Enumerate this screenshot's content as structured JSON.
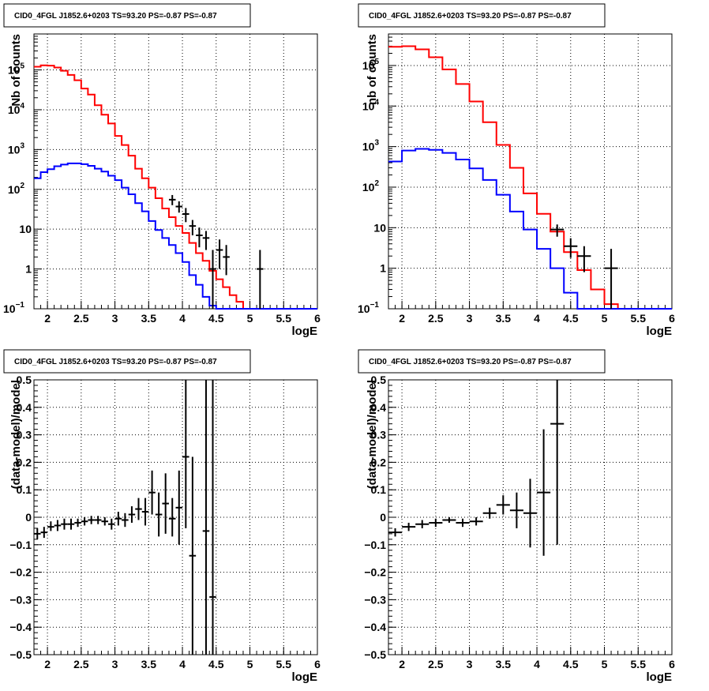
{
  "chart_data": [
    {
      "type": "line",
      "title": "CID0_4FGL J1852.6+0203 TS=93.20 PS=-0.87 PS=-0.87",
      "xlabel": "logE",
      "ylabel": "Nb of counts",
      "xlim": [
        1.8,
        6.0
      ],
      "ylim": [
        0.1,
        800000
      ],
      "y_scale": "log",
      "grid": true,
      "x_ticks": [
        2,
        2.5,
        3,
        3.5,
        4,
        4.5,
        5,
        5.5,
        6
      ],
      "x_tick_labels": [
        "2",
        "2.5",
        "3",
        "3.5",
        "4",
        "4.5",
        "5",
        "5.5",
        "6"
      ],
      "y_ticks": [
        0.1,
        1,
        10,
        100,
        1000,
        10000,
        100000
      ],
      "y_tick_labels": [
        {
          "base": "10",
          "exp": "−1"
        },
        {
          "base": "1",
          "exp": ""
        },
        {
          "base": "10",
          "exp": ""
        },
        {
          "base": "10",
          "exp": "2"
        },
        {
          "base": "10",
          "exp": "3"
        },
        {
          "base": "10",
          "exp": "4"
        },
        {
          "base": "10",
          "exp": "5"
        }
      ],
      "series": [
        {
          "color": "#ff0000",
          "step": true,
          "edges": [
            1.8,
            1.9,
            2.0,
            2.1,
            2.2,
            2.3,
            2.4,
            2.5,
            2.6,
            2.7,
            2.8,
            2.9,
            3.0,
            3.1,
            3.2,
            3.3,
            3.4,
            3.5,
            3.6,
            3.7,
            3.8,
            3.9,
            4.0,
            4.1,
            4.2,
            4.3,
            4.4,
            4.5,
            4.6,
            4.7,
            4.8,
            4.9,
            5.0,
            5.1,
            5.2,
            5.3,
            5.4,
            5.5,
            5.6,
            5.7,
            5.8,
            5.9,
            6.0
          ],
          "values": [
            120000,
            130000,
            128000,
            115000,
            95000,
            75000,
            55000,
            34000,
            24000,
            13000,
            7500,
            4500,
            2200,
            1300,
            700,
            330,
            190,
            110,
            60,
            33,
            20,
            12,
            8,
            4.5,
            2.5,
            1.6,
            0.9,
            0.55,
            0.35,
            0.22,
            0.15,
            0.1,
            0.1,
            0.1,
            0.1,
            0.1,
            0.1,
            0.1,
            0.1,
            0.1,
            0.1,
            0.1
          ]
        },
        {
          "color": "#0000ff",
          "step": true,
          "edges": [
            1.8,
            1.9,
            2.0,
            2.1,
            2.2,
            2.3,
            2.4,
            2.5,
            2.6,
            2.7,
            2.8,
            2.9,
            3.0,
            3.1,
            3.2,
            3.3,
            3.4,
            3.5,
            3.6,
            3.7,
            3.8,
            3.9,
            4.0,
            4.1,
            4.2,
            4.3,
            4.4,
            4.5,
            4.6,
            4.7,
            4.8,
            4.9,
            5.0,
            5.1,
            5.2,
            5.3,
            5.4,
            5.5,
            5.6,
            5.7,
            5.8,
            5.9,
            6.0
          ],
          "values": [
            190,
            270,
            320,
            380,
            420,
            450,
            450,
            430,
            390,
            330,
            280,
            220,
            170,
            110,
            75,
            45,
            28,
            16,
            9.5,
            6,
            4,
            2.5,
            1.5,
            0.7,
            0.4,
            0.2,
            0.12,
            0.1,
            0.1,
            0.1,
            0.1,
            0.1,
            0.1,
            0.1,
            0.1,
            0.1,
            0.1,
            0.1,
            0.1,
            0.1,
            0.1,
            0.1
          ]
        }
      ],
      "points": {
        "x": [
          3.85,
          3.95,
          4.05,
          4.15,
          4.25,
          4.35,
          4.45,
          4.55,
          4.65,
          5.15
        ],
        "xerr": 0.05,
        "y": [
          55,
          37,
          24,
          12,
          7,
          6,
          1,
          3,
          2,
          1
        ],
        "ylow": [
          40,
          26,
          15,
          7,
          3.5,
          3,
          0.1,
          1,
          0.7,
          0.1
        ],
        "yhigh": [
          72,
          50,
          34,
          17,
          11,
          9,
          3,
          5.5,
          4,
          3
        ]
      }
    },
    {
      "type": "line",
      "title": "CID0_4FGL J1852.6+0203 TS=93.20 PS=-0.87 PS=-0.87",
      "xlabel": "logE",
      "ylabel": "nb of counts",
      "xlim": [
        1.8,
        6.0
      ],
      "ylim": [
        0.1,
        600000
      ],
      "y_scale": "log",
      "grid": true,
      "x_ticks": [
        2,
        2.5,
        3,
        3.5,
        4,
        4.5,
        5,
        5.5,
        6
      ],
      "x_tick_labels": [
        "2",
        "2.5",
        "3",
        "3.5",
        "4",
        "4.5",
        "5",
        "5.5",
        "6"
      ],
      "y_ticks": [
        0.1,
        1,
        10,
        100,
        1000,
        10000,
        100000
      ],
      "y_tick_labels": [
        {
          "base": "10",
          "exp": "−1"
        },
        {
          "base": "1",
          "exp": ""
        },
        {
          "base": "10",
          "exp": ""
        },
        {
          "base": "10",
          "exp": "2"
        },
        {
          "base": "10",
          "exp": "3"
        },
        {
          "base": "10",
          "exp": "4"
        },
        {
          "base": "10",
          "exp": "5"
        }
      ],
      "series": [
        {
          "color": "#ff0000",
          "step": true,
          "edges": [
            1.8,
            2.0,
            2.2,
            2.4,
            2.6,
            2.8,
            3.0,
            3.2,
            3.4,
            3.6,
            3.8,
            4.0,
            4.2,
            4.4,
            4.6,
            4.8,
            5.0,
            5.2,
            5.4,
            5.6,
            5.8,
            6.0
          ],
          "values": [
            290000,
            300000,
            250000,
            160000,
            80000,
            35000,
            13000,
            4000,
            1100,
            300,
            70,
            22,
            8,
            2.5,
            0.9,
            0.3,
            0.13,
            0.1,
            0.1,
            0.1,
            0.1
          ]
        },
        {
          "color": "#0000ff",
          "step": true,
          "edges": [
            1.8,
            2.0,
            2.2,
            2.4,
            2.6,
            2.8,
            3.0,
            3.2,
            3.4,
            3.6,
            3.8,
            4.0,
            4.2,
            4.4,
            4.6,
            4.8,
            5.0,
            5.2,
            5.4,
            5.6,
            5.8,
            6.0
          ],
          "values": [
            430,
            800,
            880,
            830,
            700,
            480,
            290,
            150,
            65,
            25,
            9,
            3,
            1,
            0.25,
            0.1,
            0.1,
            0.1,
            0.1,
            0.1,
            0.1,
            0.1
          ]
        }
      ],
      "points": {
        "x": [
          4.3,
          4.5,
          4.7,
          5.1
        ],
        "xerr": 0.1,
        "y": [
          9,
          3.5,
          2,
          1
        ],
        "ylow": [
          6,
          1.8,
          0.8,
          0.1
        ],
        "yhigh": [
          12,
          5.5,
          3.5,
          3
        ]
      }
    },
    {
      "type": "scatter",
      "title": "CID0_4FGL J1852.6+0203 TS=93.20 PS=-0.87 PS=-0.87",
      "xlabel": "logE",
      "ylabel": "(data-model)/model",
      "xlim": [
        1.8,
        6.0
      ],
      "ylim": [
        -0.5,
        0.5
      ],
      "y_scale": "linear",
      "grid": true,
      "x_ticks": [
        2,
        2.5,
        3,
        3.5,
        4,
        4.5,
        5,
        5.5,
        6
      ],
      "x_tick_labels": [
        "2",
        "2.5",
        "3",
        "3.5",
        "4",
        "4.5",
        "5",
        "5.5",
        "6"
      ],
      "y_ticks": [
        -0.5,
        -0.4,
        -0.3,
        -0.2,
        -0.1,
        0,
        0.1,
        0.2,
        0.3,
        0.4,
        0.5
      ],
      "y_tick_labels": [
        {
          "base": "−0.5",
          "exp": ""
        },
        {
          "base": "−0.4",
          "exp": ""
        },
        {
          "base": "−0.3",
          "exp": ""
        },
        {
          "base": "−0.2",
          "exp": ""
        },
        {
          "base": "−0.1",
          "exp": ""
        },
        {
          "base": "0",
          "exp": ""
        },
        {
          "base": "0.1",
          "exp": ""
        },
        {
          "base": "0.2",
          "exp": ""
        },
        {
          "base": "0.3",
          "exp": ""
        },
        {
          "base": "0.4",
          "exp": ""
        },
        {
          "base": "0.5",
          "exp": ""
        }
      ],
      "series": [],
      "points": {
        "x": [
          1.85,
          1.95,
          2.05,
          2.15,
          2.25,
          2.35,
          2.45,
          2.55,
          2.65,
          2.75,
          2.85,
          2.95,
          3.05,
          3.15,
          3.25,
          3.35,
          3.45,
          3.55,
          3.65,
          3.75,
          3.85,
          3.95,
          4.05,
          4.15,
          4.35,
          4.45
        ],
        "xerr": 0.05,
        "y": [
          -0.06,
          -0.055,
          -0.035,
          -0.03,
          -0.025,
          -0.025,
          -0.02,
          -0.015,
          -0.01,
          -0.01,
          -0.015,
          -0.025,
          -0.005,
          -0.01,
          0.01,
          0.03,
          0.02,
          0.09,
          0.01,
          0.05,
          -0.005,
          0.035,
          0.22,
          -0.14,
          -0.05,
          -0.29
        ],
        "ylow": [
          -0.08,
          -0.075,
          -0.05,
          -0.05,
          -0.045,
          -0.045,
          -0.035,
          -0.03,
          -0.025,
          -0.025,
          -0.03,
          -0.045,
          -0.03,
          -0.035,
          -0.02,
          -0.01,
          -0.03,
          0.01,
          -0.07,
          -0.06,
          -0.07,
          -0.1,
          -0.04,
          -0.5,
          -0.5,
          -0.5
        ],
        "yhigh": [
          -0.04,
          -0.035,
          -0.015,
          -0.01,
          -0.005,
          -0.005,
          -0.005,
          0.0,
          0.005,
          0.005,
          0.0,
          -0.005,
          0.02,
          0.015,
          0.04,
          0.07,
          0.07,
          0.17,
          0.09,
          0.16,
          0.07,
          0.17,
          0.5,
          0.22,
          0.5,
          0.5
        ]
      }
    },
    {
      "type": "scatter",
      "title": "CID0_4FGL J1852.6+0203 TS=93.20 PS=-0.87 PS=-0.87",
      "xlabel": "logE",
      "ylabel": "(data-model)/model",
      "xlim": [
        1.8,
        6.0
      ],
      "ylim": [
        -0.5,
        0.5
      ],
      "y_scale": "linear",
      "grid": true,
      "x_ticks": [
        2,
        2.5,
        3,
        3.5,
        4,
        4.5,
        5,
        5.5,
        6
      ],
      "x_tick_labels": [
        "2",
        "2.5",
        "3",
        "3.5",
        "4",
        "4.5",
        "5",
        "5.5",
        "6"
      ],
      "y_ticks": [
        -0.5,
        -0.4,
        -0.3,
        -0.2,
        -0.1,
        0,
        0.1,
        0.2,
        0.3,
        0.4,
        0.5
      ],
      "y_tick_labels": [
        {
          "base": "−0.5",
          "exp": ""
        },
        {
          "base": "−0.4",
          "exp": ""
        },
        {
          "base": "−0.3",
          "exp": ""
        },
        {
          "base": "−0.2",
          "exp": ""
        },
        {
          "base": "−0.1",
          "exp": ""
        },
        {
          "base": "0",
          "exp": ""
        },
        {
          "base": "0.1",
          "exp": ""
        },
        {
          "base": "0.2",
          "exp": ""
        },
        {
          "base": "0.3",
          "exp": ""
        },
        {
          "base": "0.4",
          "exp": ""
        },
        {
          "base": "0.5",
          "exp": ""
        }
      ],
      "series": [],
      "points": {
        "x": [
          1.9,
          2.1,
          2.3,
          2.5,
          2.7,
          2.9,
          3.1,
          3.3,
          3.5,
          3.7,
          3.9,
          4.1,
          4.3
        ],
        "xerr": 0.1,
        "y": [
          -0.055,
          -0.035,
          -0.025,
          -0.02,
          -0.01,
          -0.02,
          -0.015,
          0.015,
          0.045,
          0.025,
          0.015,
          0.09,
          0.34
        ],
        "ylow": [
          -0.07,
          -0.05,
          -0.04,
          -0.035,
          -0.02,
          -0.035,
          -0.03,
          -0.005,
          0.01,
          -0.04,
          -0.11,
          -0.14,
          -0.1
        ],
        "yhigh": [
          -0.04,
          -0.02,
          -0.01,
          -0.005,
          0.0,
          -0.005,
          0.0,
          0.035,
          0.08,
          0.09,
          0.14,
          0.32,
          0.5
        ]
      }
    }
  ]
}
